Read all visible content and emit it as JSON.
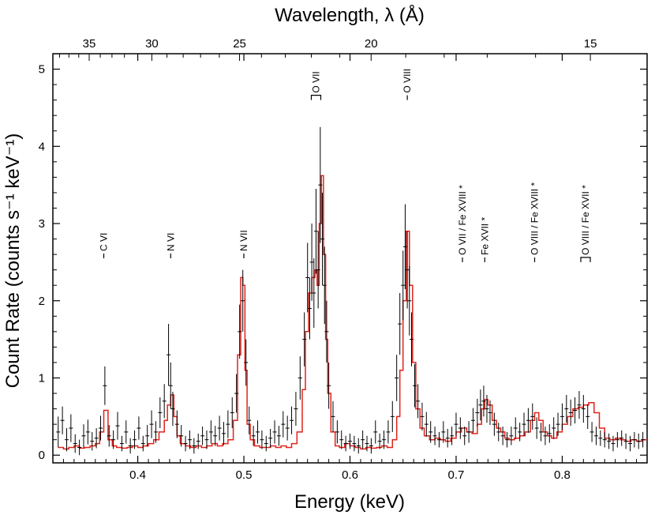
{
  "chart_data": {
    "type": "line",
    "title": "",
    "xlabel": "Energy (keV)",
    "ylabel": "Count Rate (counts s⁻¹ keV⁻¹)",
    "top_xlabel": "Wavelength, λ (Å)",
    "xlim": [
      0.32,
      0.88
    ],
    "ylim": [
      -0.1,
      5.2
    ],
    "x_ticks": [
      0.4,
      0.5,
      0.6,
      0.7,
      0.8
    ],
    "x_tick_labels": [
      "0.4",
      "0.5",
      "0.6",
      "0.7",
      "0.8"
    ],
    "y_ticks": [
      0,
      1,
      2,
      3,
      4,
      5
    ],
    "y_tick_labels": [
      "0",
      "1",
      "2",
      "3",
      "4",
      "5"
    ],
    "top_ticks_angstrom": [
      35,
      30,
      25,
      20,
      15
    ],
    "top_tick_labels": [
      "35",
      "30",
      "25",
      "20",
      "15"
    ],
    "model_color": "#e0231c",
    "data_color": "#000000",
    "series": [
      {
        "name": "model",
        "style": "step",
        "x": [
          0.325,
          0.33,
          0.335,
          0.34,
          0.345,
          0.35,
          0.355,
          0.36,
          0.364,
          0.368,
          0.372,
          0.376,
          0.38,
          0.385,
          0.39,
          0.395,
          0.4,
          0.405,
          0.41,
          0.415,
          0.42,
          0.425,
          0.428,
          0.431,
          0.434,
          0.437,
          0.44,
          0.445,
          0.45,
          0.455,
          0.46,
          0.465,
          0.47,
          0.475,
          0.48,
          0.485,
          0.49,
          0.494,
          0.497,
          0.499,
          0.501,
          0.503,
          0.506,
          0.51,
          0.515,
          0.52,
          0.525,
          0.53,
          0.535,
          0.54,
          0.545,
          0.55,
          0.555,
          0.558,
          0.561,
          0.564,
          0.567,
          0.569,
          0.571,
          0.573,
          0.575,
          0.577,
          0.579,
          0.582,
          0.586,
          0.59,
          0.595,
          0.6,
          0.605,
          0.61,
          0.615,
          0.62,
          0.625,
          0.63,
          0.635,
          0.64,
          0.644,
          0.647,
          0.65,
          0.653,
          0.656,
          0.659,
          0.662,
          0.666,
          0.67,
          0.675,
          0.68,
          0.685,
          0.69,
          0.695,
          0.7,
          0.705,
          0.71,
          0.715,
          0.72,
          0.724,
          0.727,
          0.73,
          0.734,
          0.738,
          0.742,
          0.746,
          0.75,
          0.755,
          0.76,
          0.765,
          0.77,
          0.774,
          0.778,
          0.782,
          0.786,
          0.79,
          0.795,
          0.8,
          0.805,
          0.81,
          0.815,
          0.82,
          0.825,
          0.83,
          0.835,
          0.84,
          0.845,
          0.85,
          0.855,
          0.86,
          0.865,
          0.87,
          0.875
        ],
        "y": [
          0.1,
          0.08,
          0.1,
          0.12,
          0.09,
          0.1,
          0.12,
          0.15,
          0.3,
          0.58,
          0.2,
          0.12,
          0.1,
          0.09,
          0.1,
          0.12,
          0.1,
          0.12,
          0.15,
          0.2,
          0.3,
          0.45,
          0.65,
          0.78,
          0.5,
          0.25,
          0.15,
          0.12,
          0.1,
          0.12,
          0.1,
          0.12,
          0.15,
          0.12,
          0.15,
          0.2,
          0.45,
          1.3,
          2.3,
          2.2,
          1.1,
          0.4,
          0.2,
          0.12,
          0.1,
          0.1,
          0.12,
          0.1,
          0.12,
          0.1,
          0.15,
          0.3,
          0.85,
          1.6,
          2.1,
          2.3,
          2.4,
          2.2,
          3.0,
          3.62,
          2.6,
          1.5,
          0.8,
          0.3,
          0.12,
          0.1,
          0.15,
          0.12,
          0.1,
          0.08,
          0.1,
          0.09,
          0.1,
          0.12,
          0.1,
          0.2,
          0.5,
          1.1,
          2.0,
          2.9,
          2.2,
          1.2,
          0.6,
          0.35,
          0.25,
          0.2,
          0.22,
          0.2,
          0.18,
          0.22,
          0.3,
          0.35,
          0.3,
          0.28,
          0.4,
          0.6,
          0.72,
          0.65,
          0.45,
          0.35,
          0.3,
          0.22,
          0.2,
          0.22,
          0.25,
          0.3,
          0.45,
          0.55,
          0.45,
          0.3,
          0.25,
          0.22,
          0.3,
          0.4,
          0.5,
          0.6,
          0.62,
          0.65,
          0.68,
          0.55,
          0.35,
          0.22,
          0.2,
          0.22,
          0.2,
          0.18,
          0.2,
          0.18,
          0.2
        ]
      },
      {
        "name": "data",
        "style": "errorbar",
        "x": [
          0.325,
          0.329,
          0.333,
          0.337,
          0.341,
          0.345,
          0.349,
          0.353,
          0.357,
          0.361,
          0.365,
          0.369,
          0.373,
          0.377,
          0.381,
          0.385,
          0.389,
          0.393,
          0.397,
          0.401,
          0.405,
          0.409,
          0.413,
          0.417,
          0.421,
          0.425,
          0.429,
          0.431,
          0.433,
          0.437,
          0.441,
          0.445,
          0.449,
          0.453,
          0.457,
          0.461,
          0.465,
          0.469,
          0.473,
          0.477,
          0.481,
          0.485,
          0.489,
          0.493,
          0.496,
          0.499,
          0.502,
          0.505,
          0.509,
          0.513,
          0.517,
          0.521,
          0.525,
          0.529,
          0.533,
          0.537,
          0.541,
          0.545,
          0.549,
          0.553,
          0.557,
          0.56,
          0.562,
          0.564,
          0.566,
          0.568,
          0.57,
          0.572,
          0.574,
          0.576,
          0.578,
          0.58,
          0.584,
          0.588,
          0.592,
          0.596,
          0.6,
          0.604,
          0.608,
          0.612,
          0.616,
          0.62,
          0.624,
          0.628,
          0.632,
          0.636,
          0.64,
          0.644,
          0.647,
          0.65,
          0.652,
          0.654,
          0.656,
          0.658,
          0.661,
          0.664,
          0.668,
          0.672,
          0.676,
          0.68,
          0.684,
          0.688,
          0.692,
          0.696,
          0.7,
          0.704,
          0.708,
          0.712,
          0.716,
          0.72,
          0.723,
          0.726,
          0.729,
          0.732,
          0.736,
          0.74,
          0.744,
          0.748,
          0.752,
          0.756,
          0.76,
          0.764,
          0.768,
          0.772,
          0.776,
          0.78,
          0.784,
          0.788,
          0.792,
          0.796,
          0.8,
          0.804,
          0.808,
          0.812,
          0.816,
          0.82,
          0.824,
          0.828,
          0.832,
          0.836,
          0.84,
          0.844,
          0.848,
          0.852,
          0.856,
          0.86,
          0.864,
          0.868,
          0.872,
          0.876
        ],
        "y": [
          0.3,
          0.45,
          0.2,
          0.35,
          0.15,
          0.1,
          0.25,
          0.3,
          0.18,
          0.22,
          0.35,
          0.9,
          0.25,
          0.2,
          0.38,
          0.15,
          0.3,
          0.12,
          0.2,
          0.35,
          0.15,
          0.25,
          0.4,
          0.3,
          0.55,
          0.7,
          1.3,
          0.9,
          0.6,
          0.4,
          0.25,
          0.15,
          0.2,
          0.12,
          0.18,
          0.25,
          0.2,
          0.3,
          0.25,
          0.35,
          0.28,
          0.4,
          0.55,
          0.8,
          1.6,
          2.0,
          1.2,
          0.45,
          0.25,
          0.3,
          0.2,
          0.15,
          0.22,
          0.3,
          0.25,
          0.4,
          0.35,
          0.45,
          0.6,
          1.0,
          1.5,
          2.3,
          1.9,
          2.5,
          2.1,
          2.9,
          2.4,
          3.5,
          2.8,
          2.2,
          1.6,
          0.9,
          0.5,
          0.3,
          0.2,
          0.15,
          0.18,
          0.15,
          0.12,
          0.2,
          0.15,
          0.12,
          0.3,
          0.18,
          0.2,
          0.3,
          0.5,
          1.0,
          1.7,
          2.2,
          2.7,
          2.4,
          2.0,
          1.5,
          0.9,
          0.7,
          0.5,
          0.4,
          0.3,
          0.25,
          0.2,
          0.3,
          0.22,
          0.25,
          0.4,
          0.35,
          0.25,
          0.3,
          0.45,
          0.55,
          0.65,
          0.7,
          0.6,
          0.55,
          0.4,
          0.3,
          0.25,
          0.2,
          0.25,
          0.35,
          0.3,
          0.4,
          0.45,
          0.5,
          0.35,
          0.3,
          0.25,
          0.28,
          0.35,
          0.4,
          0.5,
          0.6,
          0.55,
          0.58,
          0.65,
          0.6,
          0.5,
          0.3,
          0.25,
          0.22,
          0.2,
          0.18,
          0.15,
          0.2,
          0.22,
          0.18,
          0.15,
          0.2,
          0.18,
          0.2
        ],
        "yerr": [
          0.2,
          0.18,
          0.15,
          0.18,
          0.12,
          0.1,
          0.15,
          0.16,
          0.12,
          0.13,
          0.16,
          0.25,
          0.14,
          0.12,
          0.18,
          0.1,
          0.15,
          0.1,
          0.12,
          0.15,
          0.1,
          0.14,
          0.18,
          0.14,
          0.2,
          0.22,
          0.4,
          0.3,
          0.22,
          0.18,
          0.14,
          0.1,
          0.12,
          0.1,
          0.1,
          0.12,
          0.12,
          0.15,
          0.13,
          0.16,
          0.15,
          0.18,
          0.2,
          0.25,
          0.35,
          0.4,
          0.3,
          0.18,
          0.13,
          0.15,
          0.12,
          0.1,
          0.12,
          0.15,
          0.13,
          0.17,
          0.16,
          0.18,
          0.22,
          0.28,
          0.35,
          0.45,
          0.4,
          0.5,
          0.45,
          0.55,
          0.5,
          0.75,
          0.6,
          0.5,
          0.4,
          0.3,
          0.2,
          0.15,
          0.12,
          0.1,
          0.1,
          0.1,
          0.1,
          0.12,
          0.1,
          0.1,
          0.15,
          0.1,
          0.12,
          0.15,
          0.2,
          0.3,
          0.4,
          0.45,
          0.55,
          0.5,
          0.45,
          0.35,
          0.28,
          0.22,
          0.18,
          0.16,
          0.14,
          0.12,
          0.1,
          0.14,
          0.12,
          0.12,
          0.15,
          0.14,
          0.12,
          0.14,
          0.16,
          0.18,
          0.2,
          0.2,
          0.18,
          0.16,
          0.15,
          0.12,
          0.12,
          0.1,
          0.12,
          0.14,
          0.12,
          0.15,
          0.16,
          0.17,
          0.14,
          0.12,
          0.12,
          0.12,
          0.14,
          0.15,
          0.17,
          0.18,
          0.17,
          0.17,
          0.18,
          0.18,
          0.16,
          0.13,
          0.12,
          0.1,
          0.1,
          0.1,
          0.1,
          0.1,
          0.1,
          0.1,
          0.1,
          0.1,
          0.1,
          0.1
        ]
      }
    ],
    "annotations": [
      {
        "text": "C VI",
        "x": 0.368,
        "y": 2.55,
        "bracket": false
      },
      {
        "text": "N VI",
        "x": 0.431,
        "y": 2.55,
        "bracket": false
      },
      {
        "text": "N VII",
        "x": 0.5,
        "y": 2.55,
        "bracket": false
      },
      {
        "text": "O VII",
        "x": 0.568,
        "y": 4.6,
        "bracket": true
      },
      {
        "text": "O VIII",
        "x": 0.654,
        "y": 4.6,
        "bracket": false
      },
      {
        "text": "O VII  /  Fe XVIII *",
        "x": 0.706,
        "y": 2.5,
        "bracket": false
      },
      {
        "text": "Fe XVII *",
        "x": 0.727,
        "y": 2.5,
        "bracket": false
      },
      {
        "text": "O VIII / Fe XVIII *",
        "x": 0.774,
        "y": 2.5,
        "bracket": false
      },
      {
        "text": "O VIII / Fe XVII *",
        "x": 0.822,
        "y": 2.5,
        "bracket": true
      }
    ]
  }
}
